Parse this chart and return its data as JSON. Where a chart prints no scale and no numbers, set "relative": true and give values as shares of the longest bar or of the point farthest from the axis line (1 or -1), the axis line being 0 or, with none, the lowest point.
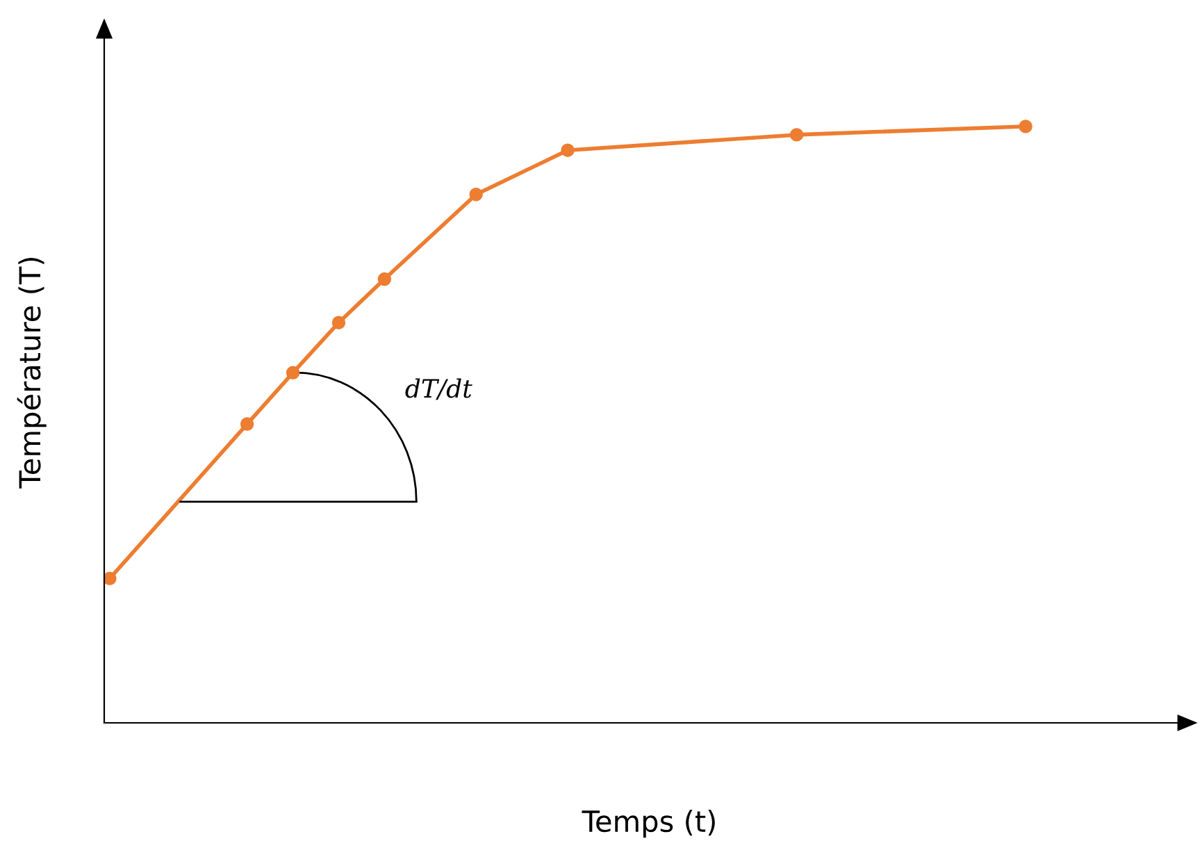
{
  "chart_data": {
    "type": "line",
    "xlabel": "Temps (t)",
    "ylabel": "Température (T)",
    "relative": true,
    "categories": [
      null,
      null,
      null,
      null,
      null,
      null,
      null,
      null,
      null,
      null,
      null,
      null,
      null,
      null,
      null,
      null,
      null,
      null,
      null,
      null,
      null
    ],
    "series": [
      {
        "color": "#ed7d31",
        "values": [
          0.242,
          null,
          null,
          0.501,
          0.587,
          0.671,
          0.744,
          null,
          0.886,
          null,
          0.96,
          null,
          null,
          null,
          null,
          0.986,
          null,
          null,
          null,
          null,
          1
        ]
      }
    ],
    "marker": "circle",
    "line_style": "solid",
    "annotations": [
      "dT/dt"
    ]
  }
}
